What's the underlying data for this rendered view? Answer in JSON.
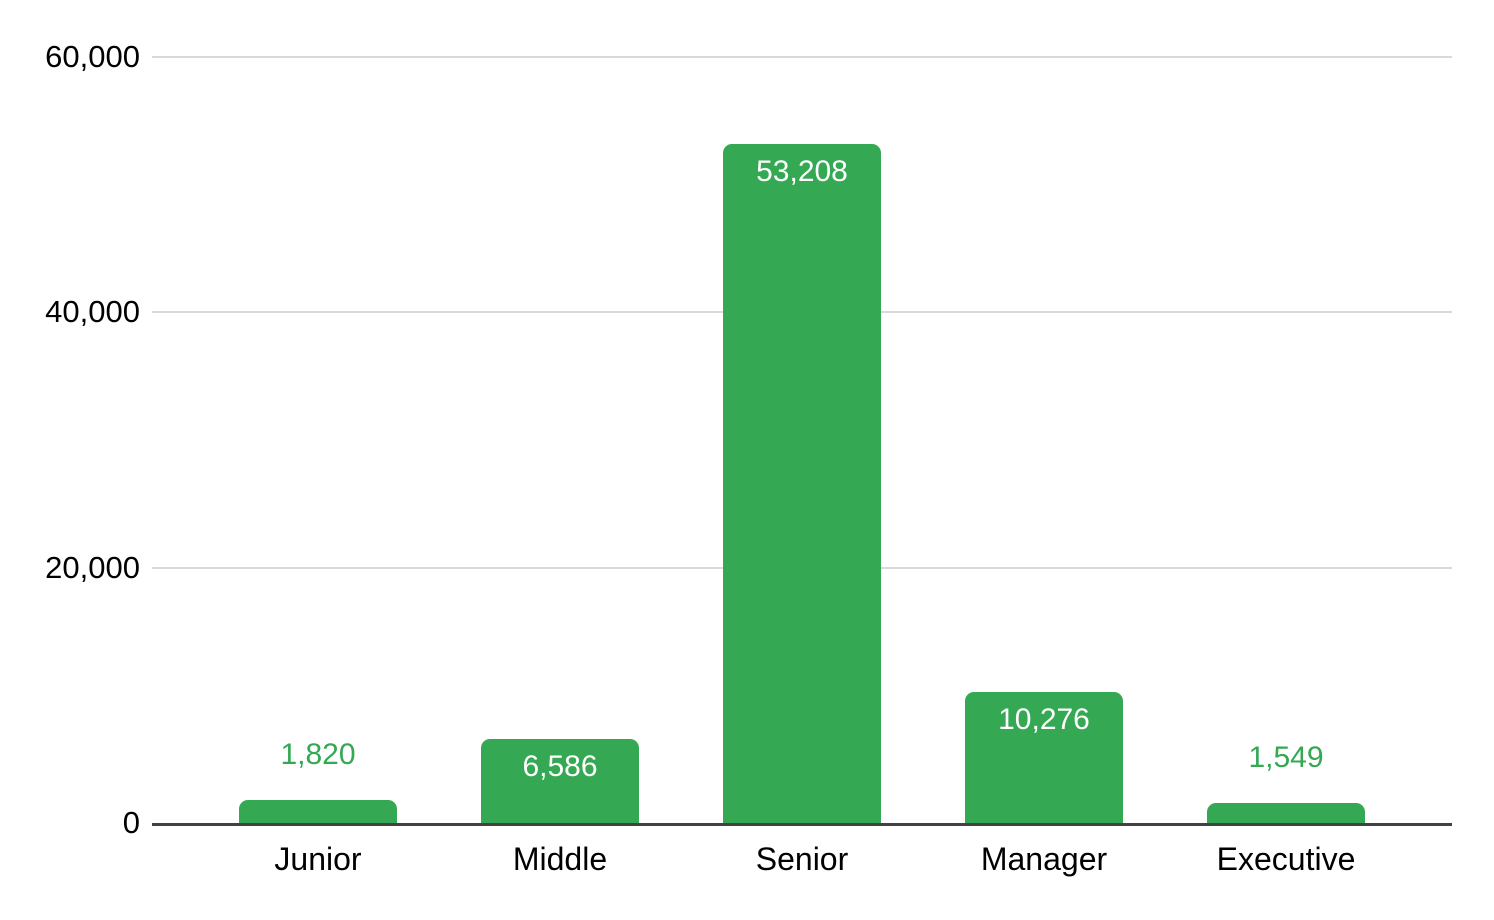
{
  "chart_data": {
    "type": "bar",
    "categories": [
      "Junior",
      "Middle",
      "Senior",
      "Manager",
      "Executive"
    ],
    "values": [
      1820,
      6586,
      53208,
      10276,
      1549
    ],
    "value_labels": [
      "1,820",
      "6,586",
      "53,208",
      "10,276",
      "1,549"
    ],
    "label_inside": [
      false,
      true,
      true,
      true,
      false
    ],
    "title": "",
    "xlabel": "",
    "ylabel": "",
    "ylim": [
      0,
      60000
    ],
    "yticks": [
      {
        "value": 60000,
        "label": "60,000"
      },
      {
        "value": 40000,
        "label": "40,000"
      },
      {
        "value": 20000,
        "label": "20,000"
      },
      {
        "value": 0,
        "label": "0"
      }
    ],
    "grid": "horizontal-only",
    "legend": "none",
    "colors": {
      "bar": "#34a853",
      "value_label_inside": "#ffffff",
      "value_label_outside": "#34a853",
      "gridline": "#d9d9d9",
      "axis_line": "#424242",
      "tick_text": "#000000",
      "category_text": "#000000",
      "background": "#ffffff"
    }
  }
}
